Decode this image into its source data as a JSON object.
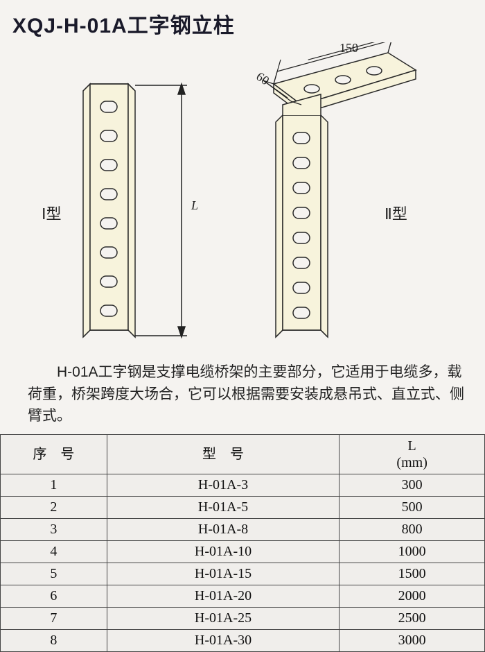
{
  "title": "XQJ-H-01A工字钢立柱",
  "diagram": {
    "type1_label": "Ⅰ型",
    "type2_label": "Ⅱ型",
    "dim_L": "L",
    "dim_top_width": "150",
    "dim_top_depth": "60",
    "column_fill": "#f7f3dc",
    "stroke": "#2a2a2a",
    "stroke_width": 1.5,
    "slot_count": 8,
    "bracket_holes": 3
  },
  "description": "H-01A工字钢是支撑电缆桥架的主要部分，它适用于电缆多，载荷重，桥架跨度大场合，它可以根据需要安装成悬吊式、直立式、侧臂式。",
  "table": {
    "columns": [
      "序　号",
      "型　号",
      "L\n(mm)"
    ],
    "col_widths": [
      "22%",
      "48%",
      "30%"
    ],
    "border_color": "#444444",
    "background": "#f0eeeb",
    "rows": [
      [
        "1",
        "H-01A-3",
        "300"
      ],
      [
        "2",
        "H-01A-5",
        "500"
      ],
      [
        "3",
        "H-01A-8",
        "800"
      ],
      [
        "4",
        "H-01A-10",
        "1000"
      ],
      [
        "5",
        "H-01A-15",
        "1500"
      ],
      [
        "6",
        "H-01A-20",
        "2000"
      ],
      [
        "7",
        "H-01A-25",
        "2500"
      ],
      [
        "8",
        "H-01A-30",
        "3000"
      ]
    ]
  }
}
